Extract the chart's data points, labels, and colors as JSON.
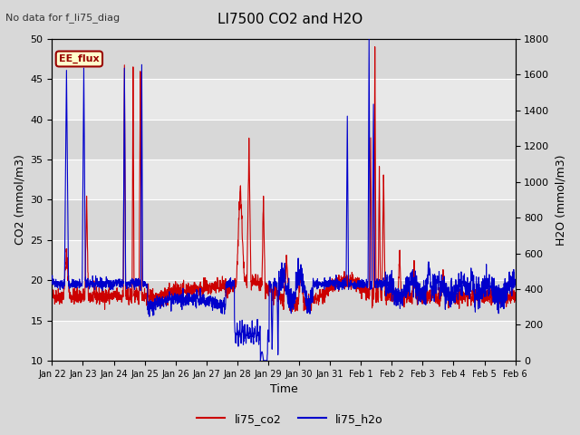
{
  "title": "LI7500 CO2 and H2O",
  "subtitle": "No data for f_li75_diag",
  "xlabel": "Time",
  "ylabel_left": "CO2 (mmol/m3)",
  "ylabel_right": "H2O (mmol/m3)",
  "annotation": "EE_flux",
  "ylim_left": [
    10,
    50
  ],
  "ylim_right": [
    0,
    1800
  ],
  "legend_labels": [
    "li75_co2",
    "li75_h2o"
  ],
  "co2_color": "#cc0000",
  "h2o_color": "#0000cc",
  "bg_color": "#d8d8d8",
  "plot_bg_color": "#e8e8e8",
  "grid_color": "#ffffff",
  "band_color_light": "#e8e8e8",
  "band_color_dark": "#d8d8d8",
  "tick_label_dates": [
    "Jan 22",
    "Jan 23",
    "Jan 24",
    "Jan 25",
    "Jan 26",
    "Jan 27",
    "Jan 28",
    "Jan 29",
    "Jan 30",
    "Jan 31",
    "Feb 1",
    "Feb 2",
    "Feb 3",
    "Feb 4",
    "Feb 5",
    "Feb 6"
  ],
  "ee_flux_bg": "#ffffcc",
  "ee_flux_text": "#990000",
  "ee_flux_border": "#990000",
  "seed": 42,
  "n_points": 2304
}
